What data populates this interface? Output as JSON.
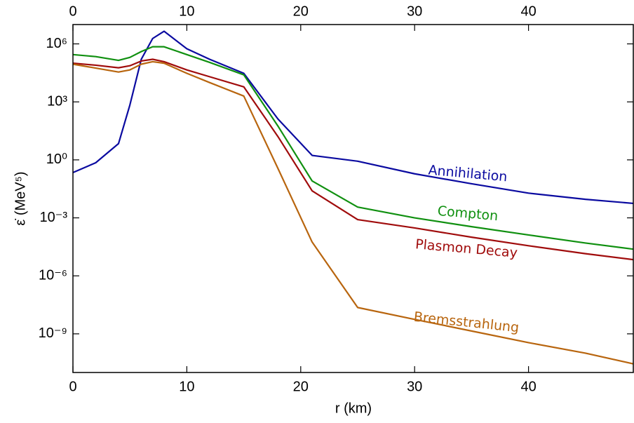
{
  "chart_data": {
    "type": "line",
    "xlabel": "r (km)",
    "ylabel": "ε̇ (MeV⁵)",
    "x": [
      0,
      2,
      4,
      5,
      6,
      7,
      8,
      10,
      12,
      15,
      18,
      21,
      25,
      30,
      35,
      40,
      45,
      49.2
    ],
    "series": [
      {
        "name": "Annihilation",
        "color": "#0a0aa0",
        "values": [
          0.22,
          0.71,
          6.9,
          690,
          160000.0,
          1900000.0,
          4500000.0,
          560000.0,
          160000.0,
          30000.0,
          130,
          1.7,
          0.85,
          0.19,
          0.058,
          0.019,
          0.0091,
          0.0056
        ]
      },
      {
        "name": "Compton",
        "color": "#109010",
        "values": [
          280000.0,
          220000.0,
          140000.0,
          200000.0,
          400000.0,
          710000.0,
          710000.0,
          280000.0,
          110000.0,
          25000.0,
          56,
          0.081,
          0.0036,
          0.001,
          0.00035,
          0.00013,
          5e-05,
          2.4e-05
        ]
      },
      {
        "name": "Plasmon Decay",
        "color": "#a00c0c",
        "values": [
          100000.0,
          79000.0,
          58000.0,
          74000.0,
          130000.0,
          160000.0,
          120000.0,
          45000.0,
          20000.0,
          6000.0,
          16,
          0.025,
          0.00081,
          0.0003,
          0.0001,
          3.6e-05,
          1.4e-05,
          6.9e-06
        ]
      },
      {
        "name": "Bremsstrahlung",
        "color": "#b8650e",
        "values": [
          89000.0,
          56000.0,
          35000.0,
          45000.0,
          89000.0,
          120000.0,
          100000.0,
          30000.0,
          10000.0,
          2000.0,
          0.36,
          5.6e-05,
          2.3e-08,
          5.6e-09,
          1.4e-09,
          3.5e-10,
          1e-10,
          2.8e-11
        ]
      }
    ],
    "xlim": [
      0,
      49.2
    ],
    "xticks": [
      0,
      10,
      20,
      30,
      40
    ],
    "ylim": [
      1e-11,
      10000000.0
    ],
    "yticks": [
      {
        "value": 1e-09,
        "label": "10⁻⁹"
      },
      {
        "value": 1e-06,
        "label": "10⁻⁶"
      },
      {
        "value": 0.001,
        "label": "10⁻³"
      },
      {
        "value": 1,
        "label": "10⁰"
      },
      {
        "value": 1000.0,
        "label": "10³"
      },
      {
        "value": 1000000.0,
        "label": "10⁶"
      }
    ],
    "log_y": true,
    "grid": false
  }
}
